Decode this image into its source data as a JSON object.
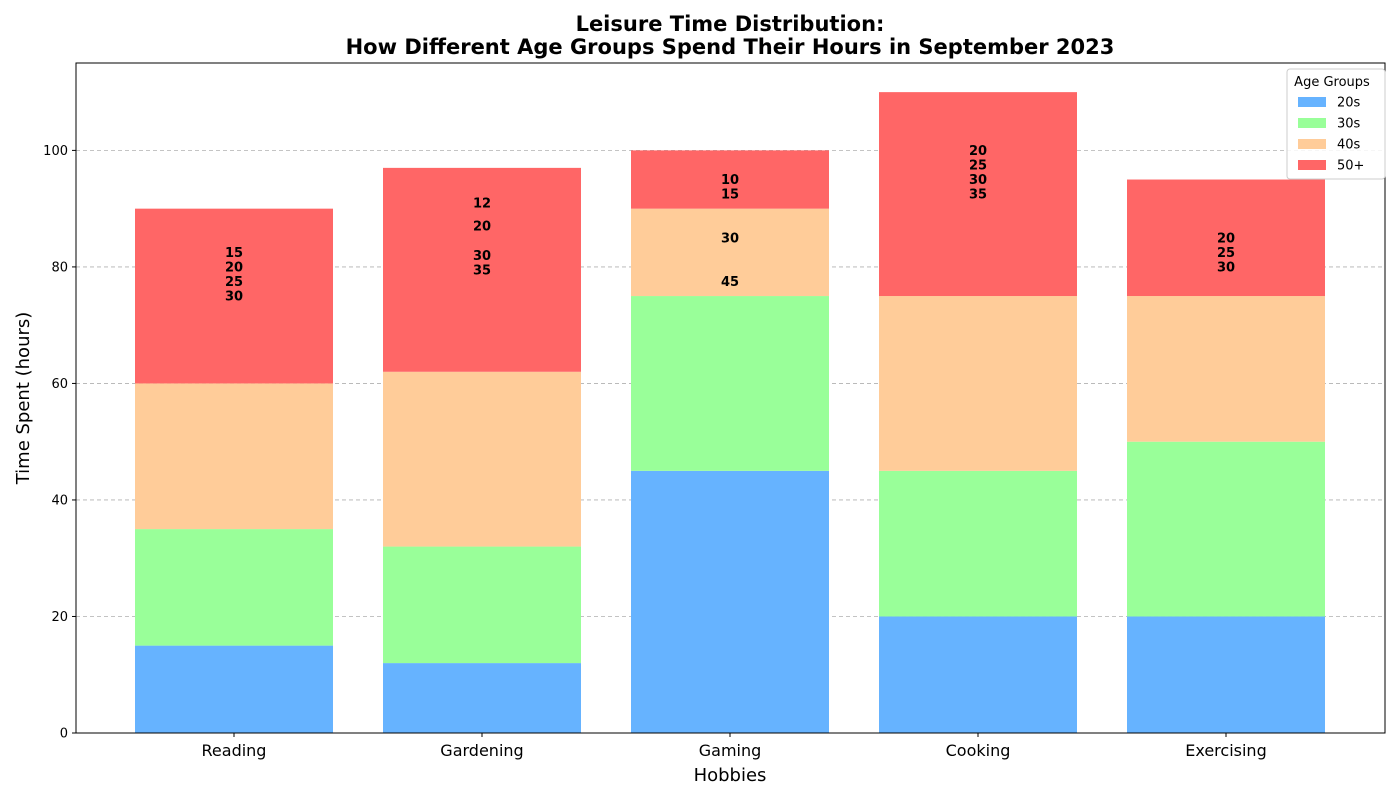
{
  "chart_data": {
    "type": "bar",
    "stacked": true,
    "title_line1": "Leisure Time Distribution:",
    "title_line2": "How Different Age Groups Spend Their Hours in September 2023",
    "xlabel": "Hobbies",
    "ylabel": "Time Spent (hours)",
    "ylim": [
      0,
      115
    ],
    "yticks": [
      0,
      20,
      40,
      60,
      80,
      100
    ],
    "grid": "horizontal dashed",
    "categories": [
      "Reading",
      "Gardening",
      "Gaming",
      "Cooking",
      "Exercising"
    ],
    "series": [
      {
        "name": "20s",
        "color": "#66b3ff",
        "values": [
          15,
          12,
          45,
          20,
          20
        ]
      },
      {
        "name": "30s",
        "color": "#99ff99",
        "values": [
          20,
          20,
          30,
          25,
          30
        ]
      },
      {
        "name": "40s",
        "color": "#ffcc99",
        "values": [
          25,
          30,
          15,
          30,
          25
        ]
      },
      {
        "name": "50+",
        "color": "#ff6666",
        "values": [
          30,
          35,
          10,
          35,
          20
        ]
      }
    ],
    "annotations": [
      {
        "category": "Reading",
        "labels": [
          {
            "text": "15",
            "y": 82.5
          },
          {
            "text": "20",
            "y": 80
          },
          {
            "text": "25",
            "y": 77.5
          },
          {
            "text": "30",
            "y": 75
          }
        ]
      },
      {
        "category": "Gardening",
        "labels": [
          {
            "text": "12",
            "y": 91
          },
          {
            "text": "20",
            "y": 87
          },
          {
            "text": "30",
            "y": 82
          },
          {
            "text": "35",
            "y": 79.5
          }
        ]
      },
      {
        "category": "Gaming",
        "labels": [
          {
            "text": "10",
            "y": 95
          },
          {
            "text": "15",
            "y": 92.5
          },
          {
            "text": "30",
            "y": 85
          },
          {
            "text": "45",
            "y": 77.5
          }
        ]
      },
      {
        "category": "Cooking",
        "labels": [
          {
            "text": "20",
            "y": 100
          },
          {
            "text": "25",
            "y": 97.5
          },
          {
            "text": "30",
            "y": 95
          },
          {
            "text": "35",
            "y": 92.5
          }
        ]
      },
      {
        "category": "Exercising",
        "labels": [
          {
            "text": "20",
            "y": 85
          },
          {
            "text": "25",
            "y": 82.5
          },
          {
            "text": "30",
            "y": 80
          }
        ]
      }
    ],
    "legend": {
      "title": "Age Groups",
      "position": "top-right"
    }
  }
}
